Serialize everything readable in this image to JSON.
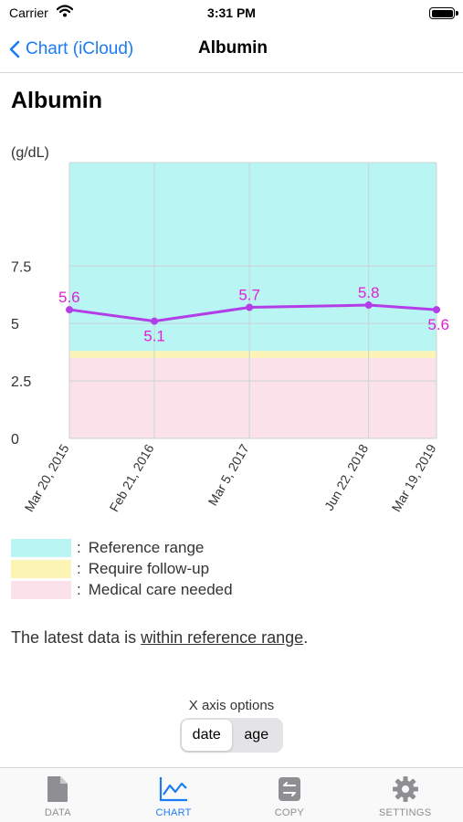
{
  "status_bar": {
    "carrier": "Carrier",
    "time": "3:31 PM"
  },
  "nav": {
    "back_label": "Chart (iCloud)",
    "title": "Albumin"
  },
  "page_title": "Albumin",
  "chart_data": {
    "type": "line",
    "ylabel": "(g/dL)",
    "ylim": [
      0,
      12
    ],
    "yticks": [
      0,
      2.5,
      5,
      7.5
    ],
    "ytick_labels": [
      "0",
      "2.5",
      "5",
      "7.5"
    ],
    "x": [
      "Mar 20, 2015",
      "Feb 21, 2016",
      "Mar 5, 2017",
      "Jun 22, 2018",
      "Mar 19, 2019"
    ],
    "series": [
      {
        "values": [
          5.6,
          5.1,
          5.7,
          5.8,
          5.6
        ],
        "labels": [
          "5.6",
          "5.1",
          "5.7",
          "5.8",
          "5.6"
        ],
        "color": "#b33ee8",
        "label_color": "#e020d8"
      }
    ],
    "bands": [
      {
        "from": 3.8,
        "to": 12,
        "color": "#b9f5f2",
        "meaning": "Reference range"
      },
      {
        "from": 3.5,
        "to": 3.8,
        "color": "#fbf4b4",
        "meaning": "Require follow-up"
      },
      {
        "from": 0,
        "to": 3.5,
        "color": "#fbe2ea",
        "meaning": "Medical care needed"
      }
    ],
    "grid": true
  },
  "legend": [
    {
      "label": "Reference range",
      "color": "#b9f5f2"
    },
    {
      "label": "Require follow-up",
      "color": "#fbf4b4"
    },
    {
      "label": "Medical care needed",
      "color": "#fbe2ea"
    }
  ],
  "legend_colon": ":",
  "latest": {
    "prefix": "The latest data is ",
    "status": "within reference range",
    "suffix": "."
  },
  "x_axis_options": {
    "label": "X axis options",
    "options": [
      "date",
      "age"
    ],
    "selected": "date"
  },
  "tabs": [
    {
      "label": "DATA",
      "icon": "document-icon",
      "active": false
    },
    {
      "label": "CHART",
      "icon": "chart-icon",
      "active": true
    },
    {
      "label": "COPY",
      "icon": "copy-icon",
      "active": false
    },
    {
      "label": "SETTINGS",
      "icon": "gear-icon",
      "active": false
    }
  ],
  "colors": {
    "accent": "#1a7cf5",
    "inactive": "#8e8e93"
  }
}
